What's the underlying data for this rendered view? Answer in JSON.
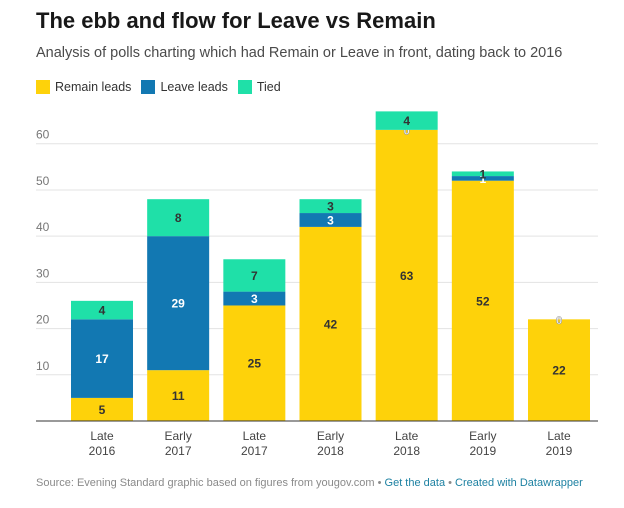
{
  "header": {
    "title": "The ebb and flow for Leave vs Remain",
    "subtitle": "Analysis of polls charting which had Remain or Leave in front, dating back to 2016"
  },
  "legend": [
    {
      "label": "Remain leads",
      "color": "#fed20a"
    },
    {
      "label": "Leave leads",
      "color": "#1278b2"
    },
    {
      "label": "Tied",
      "color": "#1fe0a8"
    }
  ],
  "footer": {
    "source": "Source: Evening Standard graphic based on figures from yougov.com",
    "sep1": " • ",
    "get_data": "Get the data",
    "sep2": " • ",
    "created_with": "Created with Datawrapper"
  },
  "chart_data": {
    "type": "bar",
    "stacked": true,
    "title": "The ebb and flow for Leave vs Remain",
    "categories": [
      [
        "Late",
        "2016"
      ],
      [
        "Early",
        "2017"
      ],
      [
        "Late",
        "2017"
      ],
      [
        "Early",
        "2018"
      ],
      [
        "Late",
        "2018"
      ],
      [
        "Early",
        "2019"
      ],
      [
        "Late",
        "2019"
      ]
    ],
    "series": [
      {
        "name": "Remain leads",
        "color": "#fed20a",
        "values": [
          5,
          11,
          25,
          42,
          63,
          52,
          22
        ],
        "labels": [
          "5",
          "11",
          "25",
          "42",
          "63",
          "52",
          "22"
        ],
        "label_color": "#333333"
      },
      {
        "name": "Leave leads",
        "color": "#1278b2",
        "values": [
          17,
          29,
          3,
          3,
          0,
          1,
          0
        ],
        "labels": [
          "17",
          "29",
          "3",
          "3",
          "0",
          "1",
          "0"
        ],
        "label_color": "#ffffff"
      },
      {
        "name": "Tied",
        "color": "#1fe0a8",
        "values": [
          4,
          8,
          7,
          3,
          4,
          1,
          0
        ],
        "labels": [
          "4",
          "8",
          "7",
          "3",
          "4",
          "1",
          ""
        ],
        "label_color": "#333333"
      }
    ],
    "yticks": [
      10,
      20,
      30,
      40,
      50,
      60
    ],
    "ylim": [
      0,
      66
    ],
    "grid": true,
    "legend_position": "top-left",
    "xlabel": "",
    "ylabel": ""
  }
}
